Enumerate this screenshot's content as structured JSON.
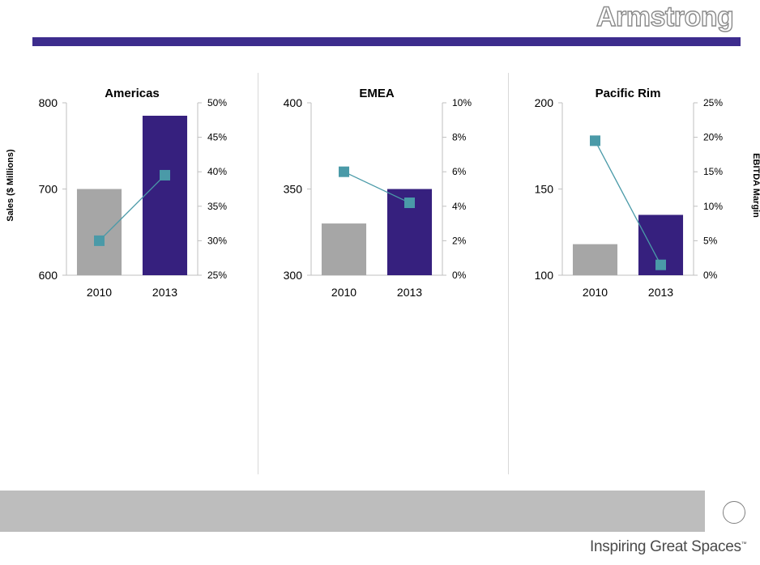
{
  "branding": {
    "logo_text": "Armstrong",
    "tagline": "Inspiring Great Spaces",
    "trademark": "™",
    "brand_color": "#3d2c8d"
  },
  "axes": {
    "left_title": "Sales ($ Millions)",
    "right_title": "EBITDA Margin"
  },
  "colors": {
    "bar_2010": "#a6a6a6",
    "bar_2013": "#36207e",
    "margin_line": "#4a9aa8",
    "margin_marker": "#4a9aa8"
  },
  "chart_data": [
    {
      "type": "bar",
      "title": "Americas",
      "categories": [
        "2010",
        "2013"
      ],
      "series": [
        {
          "values": [
            700,
            785
          ]
        },
        {
          "values": [
            30,
            39.5
          ]
        }
      ],
      "ylim": [
        600,
        800
      ],
      "yticks": [
        "600",
        "700",
        "800"
      ],
      "y2lim": [
        25,
        50
      ],
      "y2ticks": [
        "25%",
        "30%",
        "35%",
        "40%",
        "45%",
        "50%"
      ],
      "grid": false
    },
    {
      "type": "bar",
      "title": "EMEA",
      "categories": [
        "2010",
        "2013"
      ],
      "series": [
        {
          "values": [
            330,
            350
          ]
        },
        {
          "values": [
            6,
            4.2
          ]
        }
      ],
      "ylim": [
        300,
        400
      ],
      "yticks": [
        "300",
        "350",
        "400"
      ],
      "y2lim": [
        0,
        10
      ],
      "y2ticks": [
        "0%",
        "2%",
        "4%",
        "6%",
        "8%",
        "10%"
      ],
      "grid": false
    },
    {
      "type": "bar",
      "title": "Pacific Rim",
      "categories": [
        "2010",
        "2013"
      ],
      "series": [
        {
          "values": [
            118,
            135
          ]
        },
        {
          "values": [
            19.5,
            1.5
          ]
        }
      ],
      "ylim": [
        100,
        200
      ],
      "yticks": [
        "100",
        "150",
        "200"
      ],
      "y2lim": [
        0,
        25
      ],
      "y2ticks": [
        "0%",
        "5%",
        "10%",
        "15%",
        "20%",
        "25%"
      ],
      "grid": false
    }
  ]
}
